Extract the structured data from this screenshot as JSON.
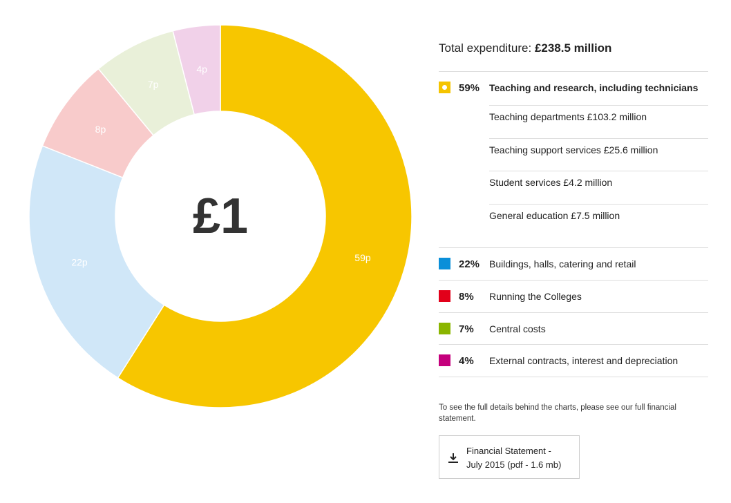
{
  "chart_data": {
    "type": "donut",
    "center_label": "£1",
    "categories": [
      "Teaching and research, including technicians",
      "Buildings, halls, catering and retail",
      "Running the Colleges",
      "Central costs",
      "External contracts, interest and depreciation"
    ],
    "values": [
      59,
      22,
      8,
      7,
      4
    ],
    "value_labels": [
      "59p",
      "22p",
      "8p",
      "7p",
      "4p"
    ],
    "legend_labels": [
      "59%",
      "22%",
      "8%",
      "7%",
      "4%"
    ],
    "colors": [
      "#f7c600",
      "#d0e7f8",
      "#f8cbcb",
      "#e9f0d9",
      "#f1d1e9"
    ],
    "legend_colors": [
      "#f5c400",
      "#0a8fd9",
      "#e2001a",
      "#8ab500",
      "#c4007c"
    ]
  },
  "summary": {
    "label": "Total expenditure:",
    "amount": "£238.5 million"
  },
  "details": [
    "Teaching departments £103.2 million",
    "Teaching support services £25.6 million",
    "Student services £4.2 million",
    "General education £7.5 million"
  ],
  "note": "To see the full details behind the charts, please see our full financial statement.",
  "download": {
    "lines": [
      "Financial Statement -",
      "July 2015 (pdf - 1.6 mb)"
    ]
  }
}
